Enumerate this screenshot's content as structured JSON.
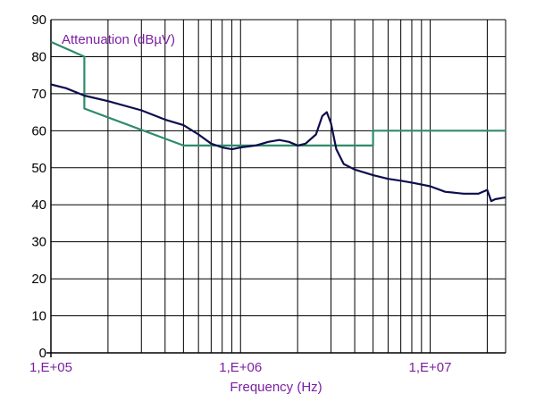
{
  "chart_data": {
    "type": "line",
    "title": "",
    "xlabel": "Frequency (Hz)",
    "ylabel": "Attenuation (dBµV)",
    "x_scale": "log",
    "xlim": [
      100000,
      25000000
    ],
    "ylim": [
      0,
      90
    ],
    "x_ticks": [
      {
        "value": 100000,
        "label": "1,E+05"
      },
      {
        "value": 1000000,
        "label": "1,E+06"
      },
      {
        "value": 10000000,
        "label": "1,E+07"
      }
    ],
    "y_ticks": [
      0,
      10,
      20,
      30,
      40,
      50,
      60,
      70,
      80,
      90
    ],
    "grid": true,
    "series": [
      {
        "color": "#2e8b6a",
        "points": [
          [
            100000,
            84
          ],
          [
            150000,
            80
          ],
          [
            150000,
            66
          ],
          [
            500000,
            56
          ],
          [
            5000000,
            56
          ],
          [
            5000000,
            60
          ],
          [
            25000000,
            60
          ]
        ]
      },
      {
        "color": "#0d0d4d",
        "points": [
          [
            100000,
            72.5
          ],
          [
            120000,
            71.5
          ],
          [
            150000,
            69.5
          ],
          [
            200000,
            68
          ],
          [
            300000,
            65.5
          ],
          [
            400000,
            63
          ],
          [
            500000,
            61.5
          ],
          [
            600000,
            59
          ],
          [
            700000,
            56.5
          ],
          [
            800000,
            55.5
          ],
          [
            900000,
            55
          ],
          [
            1000000,
            55.5
          ],
          [
            1200000,
            56
          ],
          [
            1400000,
            57
          ],
          [
            1600000,
            57.5
          ],
          [
            1800000,
            57
          ],
          [
            2000000,
            56
          ],
          [
            2200000,
            56.5
          ],
          [
            2500000,
            59
          ],
          [
            2700000,
            64
          ],
          [
            2850000,
            65
          ],
          [
            3000000,
            62
          ],
          [
            3200000,
            55
          ],
          [
            3500000,
            51
          ],
          [
            4000000,
            49.5
          ],
          [
            5000000,
            48
          ],
          [
            6000000,
            47
          ],
          [
            7000000,
            46.5
          ],
          [
            8000000,
            46
          ],
          [
            10000000,
            45
          ],
          [
            12000000,
            43.5
          ],
          [
            15000000,
            43
          ],
          [
            18000000,
            43
          ],
          [
            20000000,
            44
          ],
          [
            21000000,
            41
          ],
          [
            22000000,
            41.5
          ],
          [
            25000000,
            42
          ]
        ]
      }
    ]
  }
}
